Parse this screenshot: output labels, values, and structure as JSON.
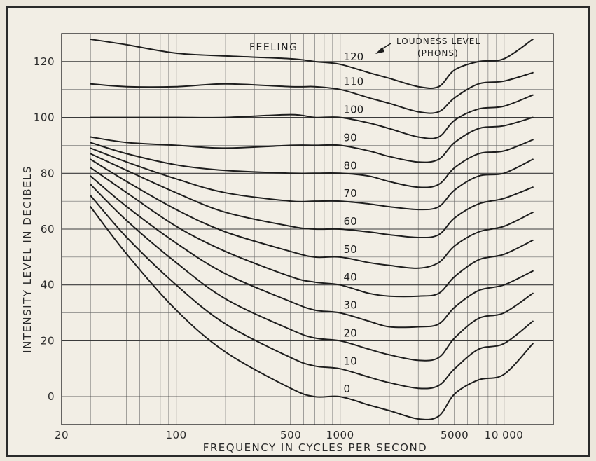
{
  "chart_data": {
    "type": "line",
    "xlabel": "FREQUENCY IN CYCLES PER SECOND",
    "ylabel": "INTENSITY LEVEL IN DECIBELS",
    "xscale": "log",
    "xlim": [
      20,
      20000
    ],
    "ylim": [
      -10,
      130
    ],
    "grid": true,
    "x_tick_labels": [
      {
        "value": 20,
        "label": "20"
      },
      {
        "value": 100,
        "label": "100"
      },
      {
        "value": 500,
        "label": "500"
      },
      {
        "value": 1000,
        "label": "1000"
      },
      {
        "value": 5000,
        "label": "5000"
      },
      {
        "value": 10000,
        "label": "10 000"
      }
    ],
    "y_tick_labels": [
      {
        "value": 0,
        "label": "0"
      },
      {
        "value": 20,
        "label": "20"
      },
      {
        "value": 40,
        "label": "40"
      },
      {
        "value": 60,
        "label": "60"
      },
      {
        "value": 80,
        "label": "80"
      },
      {
        "value": 100,
        "label": "100"
      },
      {
        "value": 120,
        "label": "120"
      }
    ],
    "annotations": {
      "feeling": "FEELING",
      "loudness_title": "LOUDNESS LEVEL",
      "loudness_unit": "(PHONS)"
    },
    "x": [
      30,
      50,
      100,
      200,
      500,
      700,
      1000,
      1500,
      2000,
      3000,
      4000,
      5000,
      7000,
      10000,
      15000
    ],
    "series": [
      {
        "name": "0",
        "values": [
          68,
          51,
          31,
          16,
          3,
          0,
          0,
          -3,
          -5,
          -8,
          -7,
          1,
          6,
          8,
          19
        ]
      },
      {
        "name": "10",
        "values": [
          72,
          57,
          40,
          26,
          14,
          11,
          10,
          7,
          5,
          3,
          4,
          10,
          17,
          19,
          27
        ]
      },
      {
        "name": "20",
        "values": [
          76,
          63,
          48,
          35,
          24,
          21,
          20,
          17,
          15,
          13,
          14,
          21,
          28,
          30,
          37
        ]
      },
      {
        "name": "30",
        "values": [
          79,
          68,
          55,
          44,
          34,
          31,
          30,
          27,
          25,
          25,
          26,
          32,
          38,
          40,
          45
        ]
      },
      {
        "name": "40",
        "values": [
          82,
          73,
          61,
          52,
          43,
          41,
          40,
          37,
          36,
          36,
          37,
          43,
          49,
          51,
          56
        ]
      },
      {
        "name": "50",
        "values": [
          85,
          77,
          67,
          59,
          52,
          50,
          50,
          48,
          47,
          46,
          48,
          54,
          59,
          61,
          66
        ]
      },
      {
        "name": "60",
        "values": [
          87,
          81,
          73,
          66,
          61,
          60,
          60,
          59,
          58,
          57,
          58,
          64,
          69,
          71,
          75
        ]
      },
      {
        "name": "70",
        "values": [
          89,
          84,
          78,
          73,
          70,
          70,
          70,
          69,
          68,
          67,
          68,
          74,
          79,
          80,
          85
        ]
      },
      {
        "name": "80",
        "values": [
          91,
          87,
          83,
          81,
          80,
          80,
          80,
          79,
          77,
          75,
          76,
          82,
          87,
          88,
          92
        ]
      },
      {
        "name": "90",
        "values": [
          93,
          91,
          90,
          89,
          90,
          90,
          90,
          88,
          86,
          84,
          85,
          91,
          96,
          97,
          100
        ]
      },
      {
        "name": "100",
        "values": [
          100,
          100,
          100,
          100,
          101,
          100,
          100,
          98,
          96,
          93,
          93,
          99,
          103,
          104,
          108
        ]
      },
      {
        "name": "110",
        "values": [
          112,
          111,
          111,
          112,
          111,
          111,
          110,
          107,
          105,
          102,
          102,
          107,
          112,
          113,
          116
        ]
      },
      {
        "name": "120",
        "values": [
          128,
          126,
          123,
          122,
          121,
          120,
          119,
          116,
          114,
          111,
          111,
          117,
          120,
          121,
          128
        ]
      }
    ]
  }
}
